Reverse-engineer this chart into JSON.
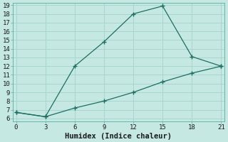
{
  "xlabel": "Humidex (Indice chaleur)",
  "bg_color": "#c5e8e2",
  "grid_color": "#a8d5ce",
  "line_color": "#1e6e62",
  "line1_x": [
    0,
    3,
    6,
    9,
    12,
    15,
    18,
    21
  ],
  "line1_y": [
    6.7,
    6.2,
    12.0,
    14.8,
    18.0,
    18.9,
    13.1,
    12.0
  ],
  "line2_x": [
    0,
    3,
    6,
    9,
    12,
    15,
    18,
    21
  ],
  "line2_y": [
    6.7,
    6.2,
    7.2,
    8.0,
    9.0,
    10.2,
    11.2,
    12.0
  ],
  "xlim": [
    -0.3,
    21.3
  ],
  "ylim": [
    5.7,
    19.3
  ],
  "xticks": [
    0,
    3,
    6,
    9,
    12,
    15,
    18,
    21
  ],
  "yticks": [
    6,
    7,
    8,
    9,
    10,
    11,
    12,
    13,
    14,
    15,
    16,
    17,
    18,
    19
  ],
  "tick_fontsize": 6.5,
  "xlabel_fontsize": 7.5
}
